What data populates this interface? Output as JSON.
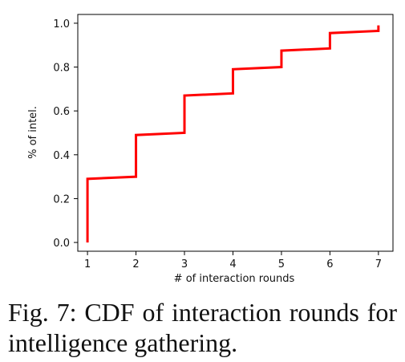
{
  "chart_data": {
    "type": "line",
    "step": true,
    "title": "",
    "xlabel": "# of interaction rounds",
    "ylabel": "% of intel.",
    "xlim": [
      0.8,
      7.3
    ],
    "ylim": [
      -0.04,
      1.04
    ],
    "xticks": [
      1,
      2,
      3,
      4,
      5,
      6,
      7
    ],
    "yticks": [
      0.0,
      0.2,
      0.4,
      0.6,
      0.8,
      1.0
    ],
    "ytick_labels": [
      "0.0",
      "0.2",
      "0.4",
      "0.6",
      "0.8",
      "1.0"
    ],
    "grid": false,
    "legend": "none",
    "line_color": "#ff0000",
    "series": [
      {
        "x": [
          1,
          1,
          2,
          2,
          3,
          3,
          4,
          4,
          5,
          5,
          6,
          6,
          7,
          7
        ],
        "y": [
          0.0,
          0.29,
          0.3,
          0.49,
          0.5,
          0.67,
          0.68,
          0.79,
          0.8,
          0.875,
          0.885,
          0.955,
          0.965,
          0.99
        ]
      }
    ]
  },
  "caption": "Fig. 7: CDF of interaction rounds for intelligence gathering."
}
